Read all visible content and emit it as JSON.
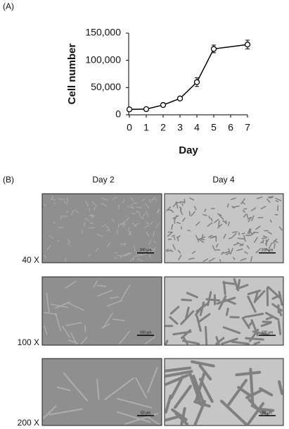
{
  "chart_data": {
    "type": "line",
    "panel_label": "(A)",
    "x_label": "Day",
    "y_label": "Cell number",
    "x": [
      0,
      1,
      2,
      3,
      4,
      5,
      7
    ],
    "values": [
      10000,
      10500,
      18000,
      30000,
      60000,
      121000,
      129000
    ],
    "errors": [
      500,
      500,
      1000,
      1500,
      8000,
      7000,
      8000
    ],
    "color": "#000000",
    "xlim": [
      0,
      7
    ],
    "xticks": [
      0,
      1,
      2,
      3,
      4,
      5,
      6,
      7
    ],
    "ylim": [
      0,
      150000
    ],
    "yticks": [
      0,
      {
        "value": 50000,
        "label": "50,000"
      },
      {
        "value": 100000,
        "label": "100,000"
      },
      {
        "value": 150000,
        "label": "150,000"
      }
    ]
  },
  "micrographs": {
    "panel_label": "(B)",
    "columns": [
      "Day 2",
      "Day 4"
    ],
    "rows": [
      {
        "label": "40 X",
        "scale_bars": [
          "200 μm",
          "200 μm"
        ]
      },
      {
        "label": "100 X",
        "scale_bars": [
          "100 μm",
          "100 μm"
        ]
      },
      {
        "label": "200 X",
        "scale_bars": [
          "50 μm",
          "50 μm"
        ]
      }
    ]
  }
}
